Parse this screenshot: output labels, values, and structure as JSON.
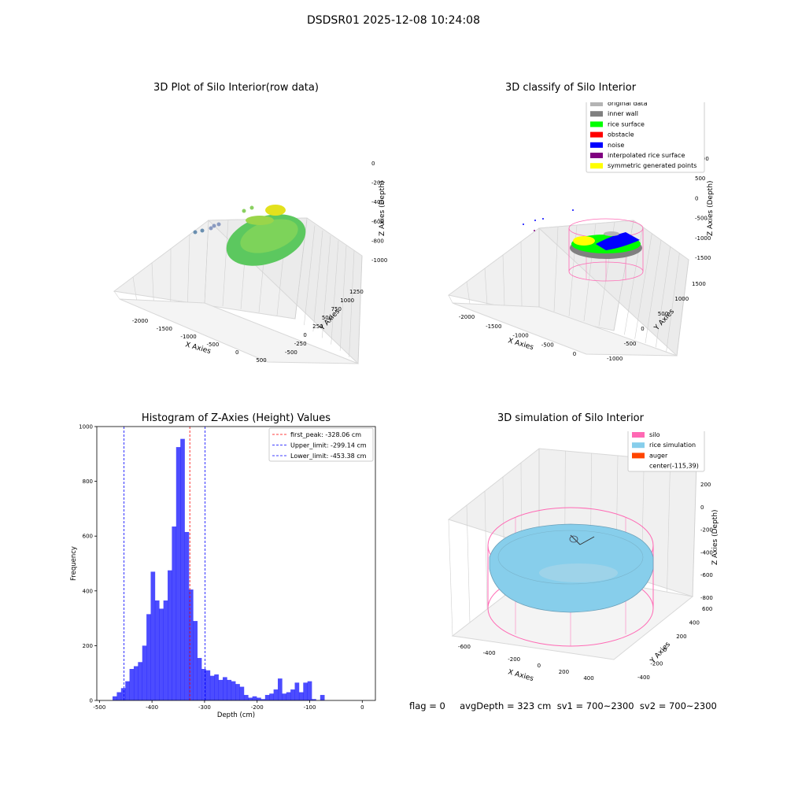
{
  "suptitle": "DSDSR01 2025-12-08 10:24:08",
  "panels": {
    "raw": {
      "title": "3D Plot of Silo Interior(row data)",
      "xlabel": "X Axies",
      "ylabel": "Y Axies",
      "zlabel": "Z Axies (Depth)",
      "xticks": [
        "-2000",
        "-1500",
        "-1000",
        "-500",
        "0",
        "500"
      ],
      "yticks": [
        "-500",
        "-250",
        "0",
        "250",
        "500",
        "750",
        "1000",
        "1250"
      ],
      "zticks": [
        "0",
        "-200",
        "-400",
        "-600",
        "-800",
        "-1000"
      ]
    },
    "classify": {
      "title": "3D classify of Silo Interior",
      "xlabel": "X Axies",
      "ylabel": "Y Axies",
      "zlabel": "Z Axies (Depth)",
      "xticks": [
        "-2000",
        "-1500",
        "-1000",
        "-500",
        "0"
      ],
      "yticks": [
        "-1000",
        "-500",
        "0",
        "500",
        "1000",
        "1500"
      ],
      "zticks": [
        "1000",
        "500",
        "0",
        "-500",
        "-1000",
        "-1500"
      ],
      "legend": [
        {
          "label": "original data",
          "color": "#b4b4b4"
        },
        {
          "label": "inner wall",
          "color": "#808080"
        },
        {
          "label": "rice surface",
          "color": "#00ff00"
        },
        {
          "label": "obstacle",
          "color": "#ff0000"
        },
        {
          "label": "noise",
          "color": "#0000ff"
        },
        {
          "label": "interpolated rice surface",
          "color": "#800080"
        },
        {
          "label": "symmetric generated points",
          "color": "#ffff00"
        }
      ]
    },
    "simulation": {
      "title": "3D simulation of Silo Interior",
      "xlabel": "X Axies",
      "ylabel": "Y Axies",
      "zlabel": "Z Axies (Depth)",
      "xticks": [
        "-600",
        "-400",
        "-200",
        "0",
        "200",
        "400"
      ],
      "yticks": [
        "-400",
        "-200",
        "0",
        "200",
        "400",
        "600"
      ],
      "zticks": [
        "200",
        "0",
        "-200",
        "-400",
        "-600",
        "-800"
      ],
      "legend": [
        {
          "label": "silo",
          "color": "#ff69b4"
        },
        {
          "label": "rice simulation",
          "color": "#87ceeb"
        },
        {
          "label": "auger",
          "color": "#ff4500"
        },
        {
          "label": "center(-115,39)",
          "color": ""
        }
      ]
    }
  },
  "footer": "flag = 0     avgDepth = 323 cm  sv1 = 700~2300  sv2 = 700~2300",
  "chart_data": {
    "type": "bar",
    "title": "Histogram of Z-Axies (Height) Values",
    "xlabel": "Depth (cm)",
    "ylabel": "Frequency",
    "xlim": [
      -505,
      25
    ],
    "ylim": [
      0,
      1000
    ],
    "xticks": [
      -500,
      -400,
      -300,
      -200,
      -100,
      0
    ],
    "yticks": [
      0,
      200,
      400,
      600,
      800,
      1000
    ],
    "color": "#0000ff",
    "bin_width": 8.06,
    "bin_start": -475,
    "values": [
      15,
      30,
      45,
      70,
      115,
      125,
      140,
      200,
      315,
      470,
      365,
      335,
      365,
      475,
      635,
      925,
      955,
      615,
      405,
      290,
      155,
      115,
      110,
      90,
      95,
      75,
      85,
      75,
      70,
      60,
      50,
      20,
      10,
      15,
      10,
      5,
      20,
      25,
      40,
      80,
      25,
      30,
      40,
      65,
      30,
      65,
      70,
      5,
      0,
      20
    ],
    "vlines": [
      {
        "x": -328.06,
        "label": "first_peak: -328.06 cm",
        "color": "#ff0000"
      },
      {
        "x": -299.14,
        "label": "Upper_limit: -299.14 cm",
        "color": "#0000ff"
      },
      {
        "x": -453.38,
        "label": "Lower_limit: -453.38 cm",
        "color": "#0000ff"
      }
    ]
  }
}
